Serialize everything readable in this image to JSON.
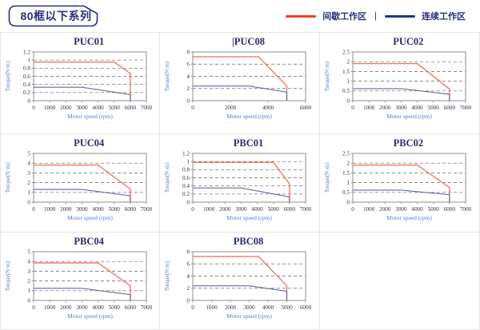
{
  "page": {
    "title_badge": "80框以下系列"
  },
  "legend": {
    "separator": "|",
    "items": [
      {
        "name": "intermittent-zone",
        "label": "间歇工作区",
        "color": "#f03f1c"
      },
      {
        "name": "continuous-zone",
        "label": "连续工作区",
        "color": "#24338c"
      }
    ]
  },
  "colors": {
    "navy": "#2b2f7e",
    "series_red": "#ef7a66",
    "series_blue": "#5e6da6",
    "axis_label_blue": "#4f81cf",
    "tick_text": "#333348",
    "gridline": "#666666",
    "plot_border": "#8c8c96"
  },
  "chart_data": [
    {
      "type": "line",
      "title": "PUC01",
      "title_prefix": "",
      "xlabel": "Motor speed (rpm)",
      "ylabel": "Torque(N·m)",
      "xlim": [
        0,
        7000
      ],
      "ylim": [
        0,
        1.2
      ],
      "xticks": [
        0,
        1000,
        2000,
        3000,
        4000,
        5000,
        6000,
        7000
      ],
      "yticks": [
        0,
        0.2,
        0.4,
        0.6,
        0.8,
        1,
        1.2
      ],
      "grid": "dashed-horizontal",
      "legend_position": "none",
      "series": [
        {
          "name": "间歇工作区",
          "color_key": "series_red",
          "points": [
            [
              0,
              0.95
            ],
            [
              5000,
              0.95
            ],
            [
              6000,
              0.67
            ],
            [
              6000,
              0
            ]
          ]
        },
        {
          "name": "连续工作区",
          "color_key": "series_blue",
          "points": [
            [
              0,
              0.33
            ],
            [
              3000,
              0.33
            ],
            [
              6000,
              0.15
            ],
            [
              6000,
              0
            ]
          ]
        }
      ]
    },
    {
      "type": "line",
      "title": "PUC08",
      "title_prefix": "|",
      "xlabel": "Motor speed (rpm)",
      "ylabel": "Torque(N·m)",
      "xlim": [
        0,
        6000
      ],
      "ylim": [
        0,
        8
      ],
      "xticks": [
        0,
        2000,
        4000,
        6000
      ],
      "yticks": [
        0,
        2,
        4,
        6,
        8
      ],
      "grid": "dashed-horizontal",
      "legend_position": "none",
      "series": [
        {
          "name": "间歇工作区",
          "color_key": "series_red",
          "points": [
            [
              0,
              7.2
            ],
            [
              3500,
              7.2
            ],
            [
              5000,
              2.4
            ],
            [
              5000,
              0
            ]
          ]
        },
        {
          "name": "连续工作区",
          "color_key": "series_blue",
          "points": [
            [
              0,
              2.4
            ],
            [
              3000,
              2.4
            ],
            [
              5000,
              1.4
            ],
            [
              5000,
              0
            ]
          ]
        }
      ]
    },
    {
      "type": "line",
      "title": "PUC02",
      "title_prefix": "",
      "xlabel": "Motor speed (rpm)",
      "ylabel": "Torque(N·m)",
      "xlim": [
        0,
        7000
      ],
      "ylim": [
        0,
        2.5
      ],
      "xticks": [
        0,
        1000,
        2000,
        3000,
        4000,
        5000,
        6000,
        7000
      ],
      "yticks": [
        0,
        0.5,
        1,
        1.5,
        2,
        2.5
      ],
      "grid": "dashed-horizontal",
      "legend_position": "none",
      "series": [
        {
          "name": "间歇工作区",
          "color_key": "series_red",
          "points": [
            [
              0,
              1.9
            ],
            [
              4000,
              1.9
            ],
            [
              6000,
              0.6
            ],
            [
              6000,
              0
            ]
          ]
        },
        {
          "name": "连续工作区",
          "color_key": "series_blue",
          "points": [
            [
              0,
              0.62
            ],
            [
              3000,
              0.62
            ],
            [
              6000,
              0.33
            ],
            [
              6000,
              0
            ]
          ]
        }
      ]
    },
    {
      "type": "line",
      "title": "PUC04",
      "title_prefix": "",
      "xlabel": "Motor speed (rpm)",
      "ylabel": "Torque(N·m)",
      "xlim": [
        0,
        7000
      ],
      "ylim": [
        0,
        5
      ],
      "xticks": [
        0,
        1000,
        2000,
        3000,
        4000,
        5000,
        6000,
        7000
      ],
      "yticks": [
        0,
        1,
        2,
        3,
        4,
        5
      ],
      "grid": "dashed-horizontal",
      "legend_position": "none",
      "series": [
        {
          "name": "间歇工作区",
          "color_key": "series_red",
          "points": [
            [
              0,
              3.8
            ],
            [
              4000,
              3.8
            ],
            [
              6000,
              1.35
            ],
            [
              6000,
              0
            ]
          ]
        },
        {
          "name": "连续工作区",
          "color_key": "series_blue",
          "points": [
            [
              0,
              1.3
            ],
            [
              3000,
              1.3
            ],
            [
              6000,
              0.65
            ],
            [
              6000,
              0
            ]
          ]
        }
      ]
    },
    {
      "type": "line",
      "title": "PBC01",
      "title_prefix": "",
      "xlabel": "Motor speed (rpm)",
      "ylabel": "Torque(N·m)",
      "xlim": [
        0,
        7000
      ],
      "ylim": [
        0,
        1.2
      ],
      "xticks": [
        0,
        1000,
        2000,
        3000,
        4000,
        5000,
        6000,
        7000
      ],
      "yticks": [
        0,
        0.2,
        0.4,
        0.6,
        0.8,
        1,
        1.2
      ],
      "grid": "dashed-horizontal",
      "legend_position": "none",
      "series": [
        {
          "name": "间歇工作区",
          "color_key": "series_red",
          "points": [
            [
              0,
              0.98
            ],
            [
              5000,
              0.98
            ],
            [
              6000,
              0.45
            ],
            [
              6000,
              0
            ]
          ]
        },
        {
          "name": "连续工作区",
          "color_key": "series_blue",
          "points": [
            [
              0,
              0.35
            ],
            [
              3000,
              0.35
            ],
            [
              6000,
              0.13
            ],
            [
              6000,
              0
            ]
          ]
        }
      ]
    },
    {
      "type": "line",
      "title": "PBC02",
      "title_prefix": "",
      "xlabel": "Motor speed (rpm)",
      "ylabel": "Torque(N·m)",
      "xlim": [
        0,
        7000
      ],
      "ylim": [
        0,
        2.5
      ],
      "xticks": [
        0,
        1000,
        2000,
        3000,
        4000,
        5000,
        6000,
        7000
      ],
      "yticks": [
        0,
        0.5,
        1,
        1.5,
        2,
        2.5
      ],
      "grid": "dashed-horizontal",
      "legend_position": "none",
      "series": [
        {
          "name": "间歇工作区",
          "color_key": "series_red",
          "points": [
            [
              0,
              1.9
            ],
            [
              4000,
              1.9
            ],
            [
              6000,
              0.75
            ],
            [
              6000,
              0
            ]
          ]
        },
        {
          "name": "连续工作区",
          "color_key": "series_blue",
          "points": [
            [
              0,
              0.62
            ],
            [
              3000,
              0.62
            ],
            [
              6000,
              0.38
            ],
            [
              6000,
              0
            ]
          ]
        }
      ]
    },
    {
      "type": "line",
      "title": "PBC04",
      "title_prefix": "",
      "xlabel": "Motor speed (rpm)",
      "ylabel": "Torque(N·m)",
      "xlim": [
        0,
        7000
      ],
      "ylim": [
        0,
        5
      ],
      "xticks": [
        0,
        1000,
        2000,
        3000,
        4000,
        5000,
        6000,
        7000
      ],
      "yticks": [
        0,
        1,
        2,
        3,
        4,
        5
      ],
      "grid": "dashed-horizontal",
      "legend_position": "none",
      "series": [
        {
          "name": "间歇工作区",
          "color_key": "series_red",
          "points": [
            [
              0,
              3.85
            ],
            [
              4000,
              3.85
            ],
            [
              6000,
              1.5
            ],
            [
              6000,
              0
            ]
          ]
        },
        {
          "name": "连续工作区",
          "color_key": "series_blue",
          "points": [
            [
              0,
              1.25
            ],
            [
              3000,
              1.25
            ],
            [
              6000,
              0.6
            ],
            [
              6000,
              0
            ]
          ]
        }
      ]
    },
    {
      "type": "line",
      "title": "PBC08",
      "title_prefix": "",
      "xlabel": "Motor speed (rpm)",
      "ylabel": "Torque(N·m)",
      "xlim": [
        0,
        6000
      ],
      "ylim": [
        0,
        8
      ],
      "xticks": [
        0,
        1000,
        2000,
        3000,
        4000,
        5000,
        6000
      ],
      "yticks": [
        0,
        2,
        4,
        6,
        8
      ],
      "grid": "dashed-horizontal",
      "legend_position": "none",
      "series": [
        {
          "name": "间歇工作区",
          "color_key": "series_red",
          "points": [
            [
              0,
              7.2
            ],
            [
              3500,
              7.2
            ],
            [
              5000,
              2.4
            ],
            [
              5000,
              0
            ]
          ]
        },
        {
          "name": "连续工作区",
          "color_key": "series_blue",
          "points": [
            [
              0,
              2.4
            ],
            [
              3000,
              2.4
            ],
            [
              5000,
              1.5
            ],
            [
              5000,
              0
            ]
          ]
        }
      ]
    }
  ]
}
